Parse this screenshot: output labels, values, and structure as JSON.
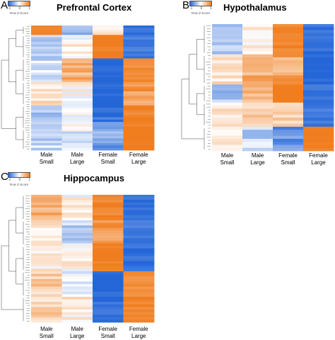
{
  "color_key": {
    "ticks": [
      "-1",
      "0",
      "1"
    ],
    "title": "Row Z-Score",
    "low_color": "#2466d8",
    "mid_color": "#ffffff",
    "high_color": "#f07d1e"
  },
  "panels": [
    {
      "letter": "A",
      "title": "Prefrontal Cortex"
    },
    {
      "letter": "B",
      "title": "Hypothalamus"
    },
    {
      "letter": "C",
      "title": "Hippocampus"
    }
  ],
  "columns": [
    {
      "line1": "Male",
      "line2": "Small"
    },
    {
      "line1": "Male",
      "line2": "Large"
    },
    {
      "line1": "Female",
      "line2": "Small"
    },
    {
      "line1": "Female",
      "line2": "Large"
    }
  ],
  "chart_data": [
    {
      "type": "heatmap",
      "title": "Prefrontal Cortex",
      "columns": [
        "Male Small",
        "Male Large",
        "Female Small",
        "Female Large"
      ],
      "value_scale": [
        -1.5,
        1.5
      ],
      "row_blocks": [
        {
          "rows": 4,
          "values": [
            1.4,
            -0.6,
            0.4,
            -1.4
          ]
        },
        {
          "rows": 10,
          "values": [
            -0.4,
            0.1,
            1.5,
            -1.3
          ]
        },
        {
          "rows": 10,
          "values": [
            -0.3,
            0.9,
            -1.5,
            1.3
          ]
        },
        {
          "rows": 10,
          "values": [
            0.4,
            0.1,
            -1.5,
            1.2
          ]
        },
        {
          "rows": 10,
          "values": [
            -0.5,
            -0.1,
            -1.2,
            1.4
          ]
        },
        {
          "rows": 9,
          "values": [
            -0.4,
            -0.2,
            -0.9,
            1.6
          ]
        }
      ]
    },
    {
      "type": "heatmap",
      "title": "Hypothalamus",
      "columns": [
        "Male Small",
        "Male Large",
        "Female Small",
        "Female Large"
      ],
      "value_scale": [
        -1.5,
        1.5
      ],
      "row_blocks": [
        {
          "rows": 10,
          "values": [
            -0.6,
            0.2,
            1.4,
            -1.4
          ]
        },
        {
          "rows": 10,
          "values": [
            0.4,
            0.9,
            1.0,
            -1.5
          ]
        },
        {
          "rows": 6,
          "values": [
            -0.6,
            0.9,
            1.6,
            -1.3
          ]
        },
        {
          "rows": 8,
          "values": [
            0.3,
            0.6,
            0.5,
            -1.3
          ]
        },
        {
          "rows": 8,
          "values": [
            0.2,
            -0.4,
            -1.0,
            1.5
          ]
        }
      ]
    },
    {
      "type": "heatmap",
      "title": "Hippocampus",
      "columns": [
        "Male Small",
        "Male Large",
        "Female Small",
        "Female Large"
      ],
      "value_scale": [
        -1.5,
        1.5
      ],
      "row_blocks": [
        {
          "rows": 10,
          "values": [
            0.9,
            0.1,
            1.4,
            -1.4
          ]
        },
        {
          "rows": 10,
          "values": [
            0.3,
            -0.4,
            1.2,
            -1.3
          ]
        },
        {
          "rows": 10,
          "values": [
            0.2,
            0.1,
            1.5,
            -1.4
          ]
        },
        {
          "rows": 10,
          "values": [
            0.6,
            -0.1,
            -1.5,
            1.3
          ]
        },
        {
          "rows": 10,
          "values": [
            0.5,
            0.2,
            -1.4,
            1.4
          ]
        }
      ]
    }
  ]
}
